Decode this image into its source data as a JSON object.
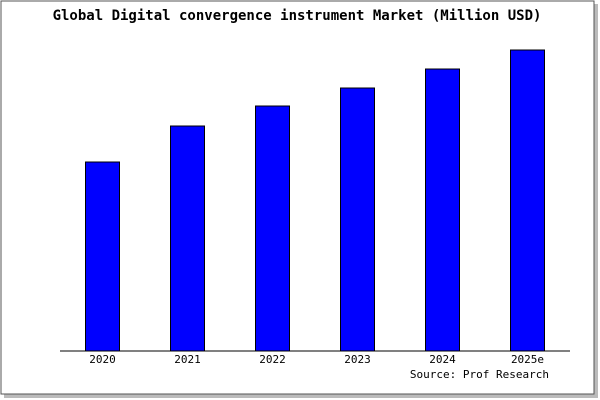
{
  "chart_data": {
    "type": "bar",
    "title": "Global Digital convergence instrument Market (Million USD)",
    "categories": [
      "2020",
      "2021",
      "2022",
      "2023",
      "2024",
      "2025e"
    ],
    "values": [
      189,
      225,
      245,
      263,
      282,
      301
    ],
    "color": "#0000ff",
    "source": "Source: Prof Research"
  }
}
